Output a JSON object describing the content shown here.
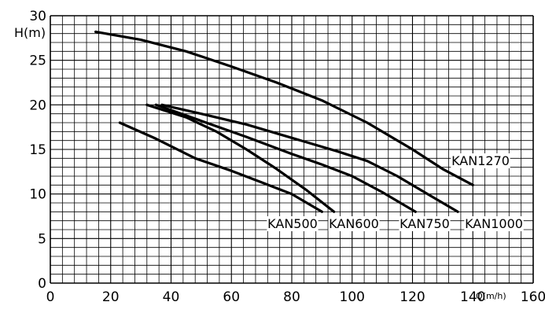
{
  "chart_data": {
    "type": "line",
    "xlabel": "Q(m/h)",
    "ylabel": "H(m)",
    "xlim": [
      0,
      160
    ],
    "ylim": [
      0,
      30
    ],
    "x_ticks": [
      "0",
      "20",
      "40",
      "60",
      "80",
      "100",
      "120",
      "140",
      "160"
    ],
    "y_ticks": [
      "0",
      "5",
      "10",
      "15",
      "20",
      "25",
      "30"
    ],
    "grid": true,
    "series": [
      {
        "name": "KAN1270",
        "points": [
          [
            15,
            28.2
          ],
          [
            30,
            27.3
          ],
          [
            45,
            26
          ],
          [
            60,
            24.3
          ],
          [
            75,
            22.5
          ],
          [
            90,
            20.5
          ],
          [
            105,
            18
          ],
          [
            120,
            15
          ],
          [
            130,
            12.8
          ],
          [
            140,
            11
          ]
        ]
      },
      {
        "name": "KAN1000",
        "points": [
          [
            37,
            20
          ],
          [
            50,
            19
          ],
          [
            65,
            17.8
          ],
          [
            80,
            16.3
          ],
          [
            95,
            14.8
          ],
          [
            105,
            13.7
          ],
          [
            115,
            12
          ],
          [
            125,
            10
          ],
          [
            135,
            8
          ]
        ]
      },
      {
        "name": "KAN750",
        "points": [
          [
            35,
            20
          ],
          [
            50,
            18.2
          ],
          [
            65,
            16.4
          ],
          [
            80,
            14.5
          ],
          [
            90,
            13.3
          ],
          [
            100,
            12
          ],
          [
            110,
            10.2
          ],
          [
            121,
            8
          ]
        ]
      },
      {
        "name": "KAN600",
        "points": [
          [
            32,
            20
          ],
          [
            45,
            18.6
          ],
          [
            55,
            17
          ],
          [
            65,
            15
          ],
          [
            75,
            12.8
          ],
          [
            85,
            10.4
          ],
          [
            94,
            8
          ]
        ]
      },
      {
        "name": "KAN500",
        "points": [
          [
            23,
            18
          ],
          [
            35,
            16.2
          ],
          [
            48,
            14
          ],
          [
            60,
            12.6
          ],
          [
            70,
            11.3
          ],
          [
            80,
            10
          ],
          [
            85,
            9
          ],
          [
            90,
            8
          ]
        ]
      }
    ]
  }
}
